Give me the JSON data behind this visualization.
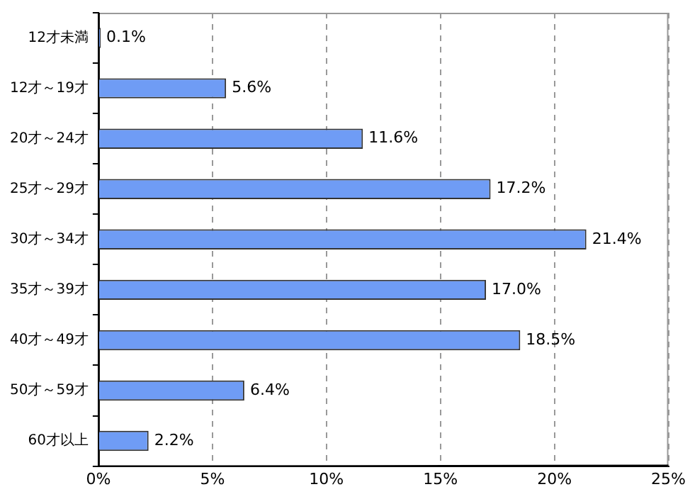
{
  "chart_data": {
    "type": "bar",
    "orientation": "horizontal",
    "categories": [
      "12才未満",
      "12才～19才",
      "20才～24才",
      "25才～29才",
      "30才～34才",
      "35才～39才",
      "40才～49才",
      "50才～59才",
      "60才以上"
    ],
    "values": [
      0.1,
      5.6,
      11.6,
      17.2,
      21.4,
      17.0,
      18.5,
      6.4,
      2.2
    ],
    "value_labels": [
      "0.1%",
      "5.6%",
      "11.6%",
      "17.2%",
      "21.4%",
      "17.0%",
      "18.5%",
      "6.4%",
      "2.2%"
    ],
    "color": "#6f9cf5",
    "xlim": [
      0,
      25
    ],
    "xticks": [
      {
        "value": 0,
        "label": "0%"
      },
      {
        "value": 5,
        "label": "5%"
      },
      {
        "value": 10,
        "label": "10%"
      },
      {
        "value": 15,
        "label": "15%"
      },
      {
        "value": 20,
        "label": "20%"
      },
      {
        "value": 25,
        "label": "25%"
      }
    ],
    "grid": "x",
    "legend": false
  }
}
